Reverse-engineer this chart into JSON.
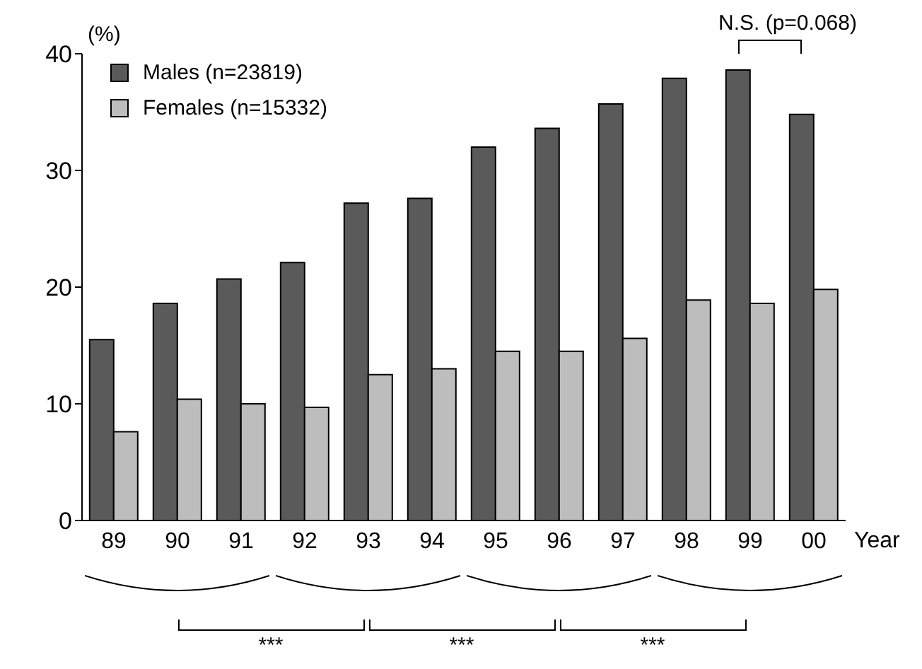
{
  "chart_data": {
    "type": "bar",
    "ylabel": "(%)",
    "xlabel": "Year",
    "categories": [
      "89",
      "90",
      "91",
      "92",
      "93",
      "94",
      "95",
      "96",
      "97",
      "98",
      "99",
      "00"
    ],
    "series": [
      {
        "name": "Males (n=23819)",
        "color": "#5a5a5a",
        "values": [
          15.5,
          18.6,
          20.7,
          22.1,
          27.2,
          27.6,
          32.0,
          33.6,
          35.7,
          37.9,
          38.6,
          34.8
        ]
      },
      {
        "name": "Females (n=15332)",
        "color": "#bdbdbd",
        "values": [
          7.6,
          10.4,
          10.0,
          9.7,
          12.5,
          13.0,
          14.5,
          14.5,
          15.6,
          18.9,
          18.6,
          19.8
        ]
      }
    ],
    "ylim": [
      0,
      40
    ],
    "yticks": [
      0,
      10,
      20,
      30,
      40
    ],
    "legend": "top left",
    "annotations": [
      "N.S. (p=0.068)",
      "***",
      "***",
      "***"
    ]
  }
}
